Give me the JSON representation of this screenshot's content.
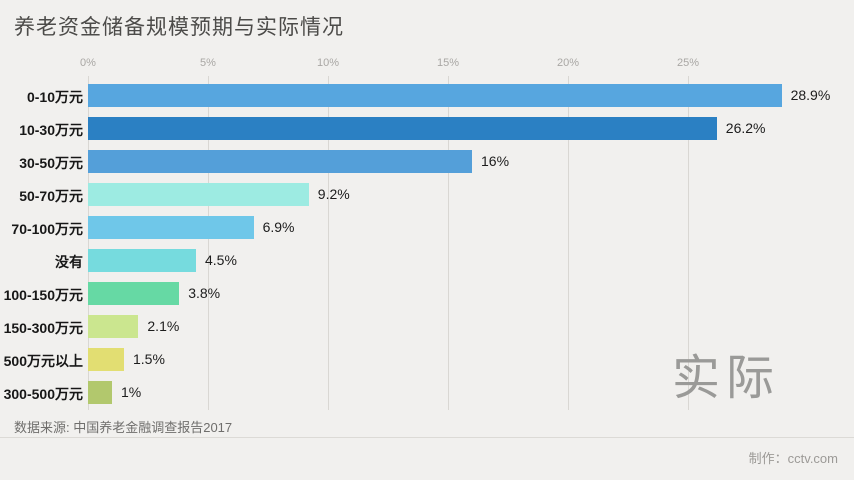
{
  "title": "养老资金储备规模预期与实际情况",
  "watermark": "实际",
  "footer": {
    "source": "数据来源: 中国养老金融调查报告2017",
    "credit": "制作：cctv.com"
  },
  "colors": {
    "background": "#f1f0ee",
    "grid": "#d9d7d3",
    "axis_text": "#a9a7a4",
    "title_text": "#4c4b49",
    "watermark_text": "#9a9a98"
  },
  "chart_data": {
    "type": "bar",
    "orientation": "horizontal",
    "title": "养老资金储备规模预期与实际情况",
    "categories": [
      "0-10万元",
      "10-30万元",
      "30-50万元",
      "50-70万元",
      "70-100万元",
      "没有",
      "100-150万元",
      "150-300万元",
      "500万元以上",
      "300-500万元"
    ],
    "values": [
      28.9,
      26.2,
      16,
      9.2,
      6.9,
      4.5,
      3.8,
      2.1,
      1.5,
      1
    ],
    "value_labels": [
      "28.9%",
      "26.2%",
      "16%",
      "9.2%",
      "6.9%",
      "4.5%",
      "3.8%",
      "2.1%",
      "1.5%",
      "1%"
    ],
    "bar_colors": [
      "#57A6DF",
      "#2B80C3",
      "#549FD9",
      "#9DEBE2",
      "#6FC7E9",
      "#76DBDE",
      "#66D9A4",
      "#CBE68F",
      "#E2DE72",
      "#B2C86D"
    ],
    "xlabel": "",
    "ylabel": "",
    "x_axis": {
      "tick_values": [
        0,
        5,
        10,
        15,
        20,
        25
      ],
      "tick_labels": [
        "0%",
        "5%",
        "10%",
        "15%",
        "20%",
        "25%"
      ],
      "range": [
        0,
        29
      ],
      "unit": "%"
    },
    "grid": true,
    "legend": false,
    "annotation": "实际"
  }
}
